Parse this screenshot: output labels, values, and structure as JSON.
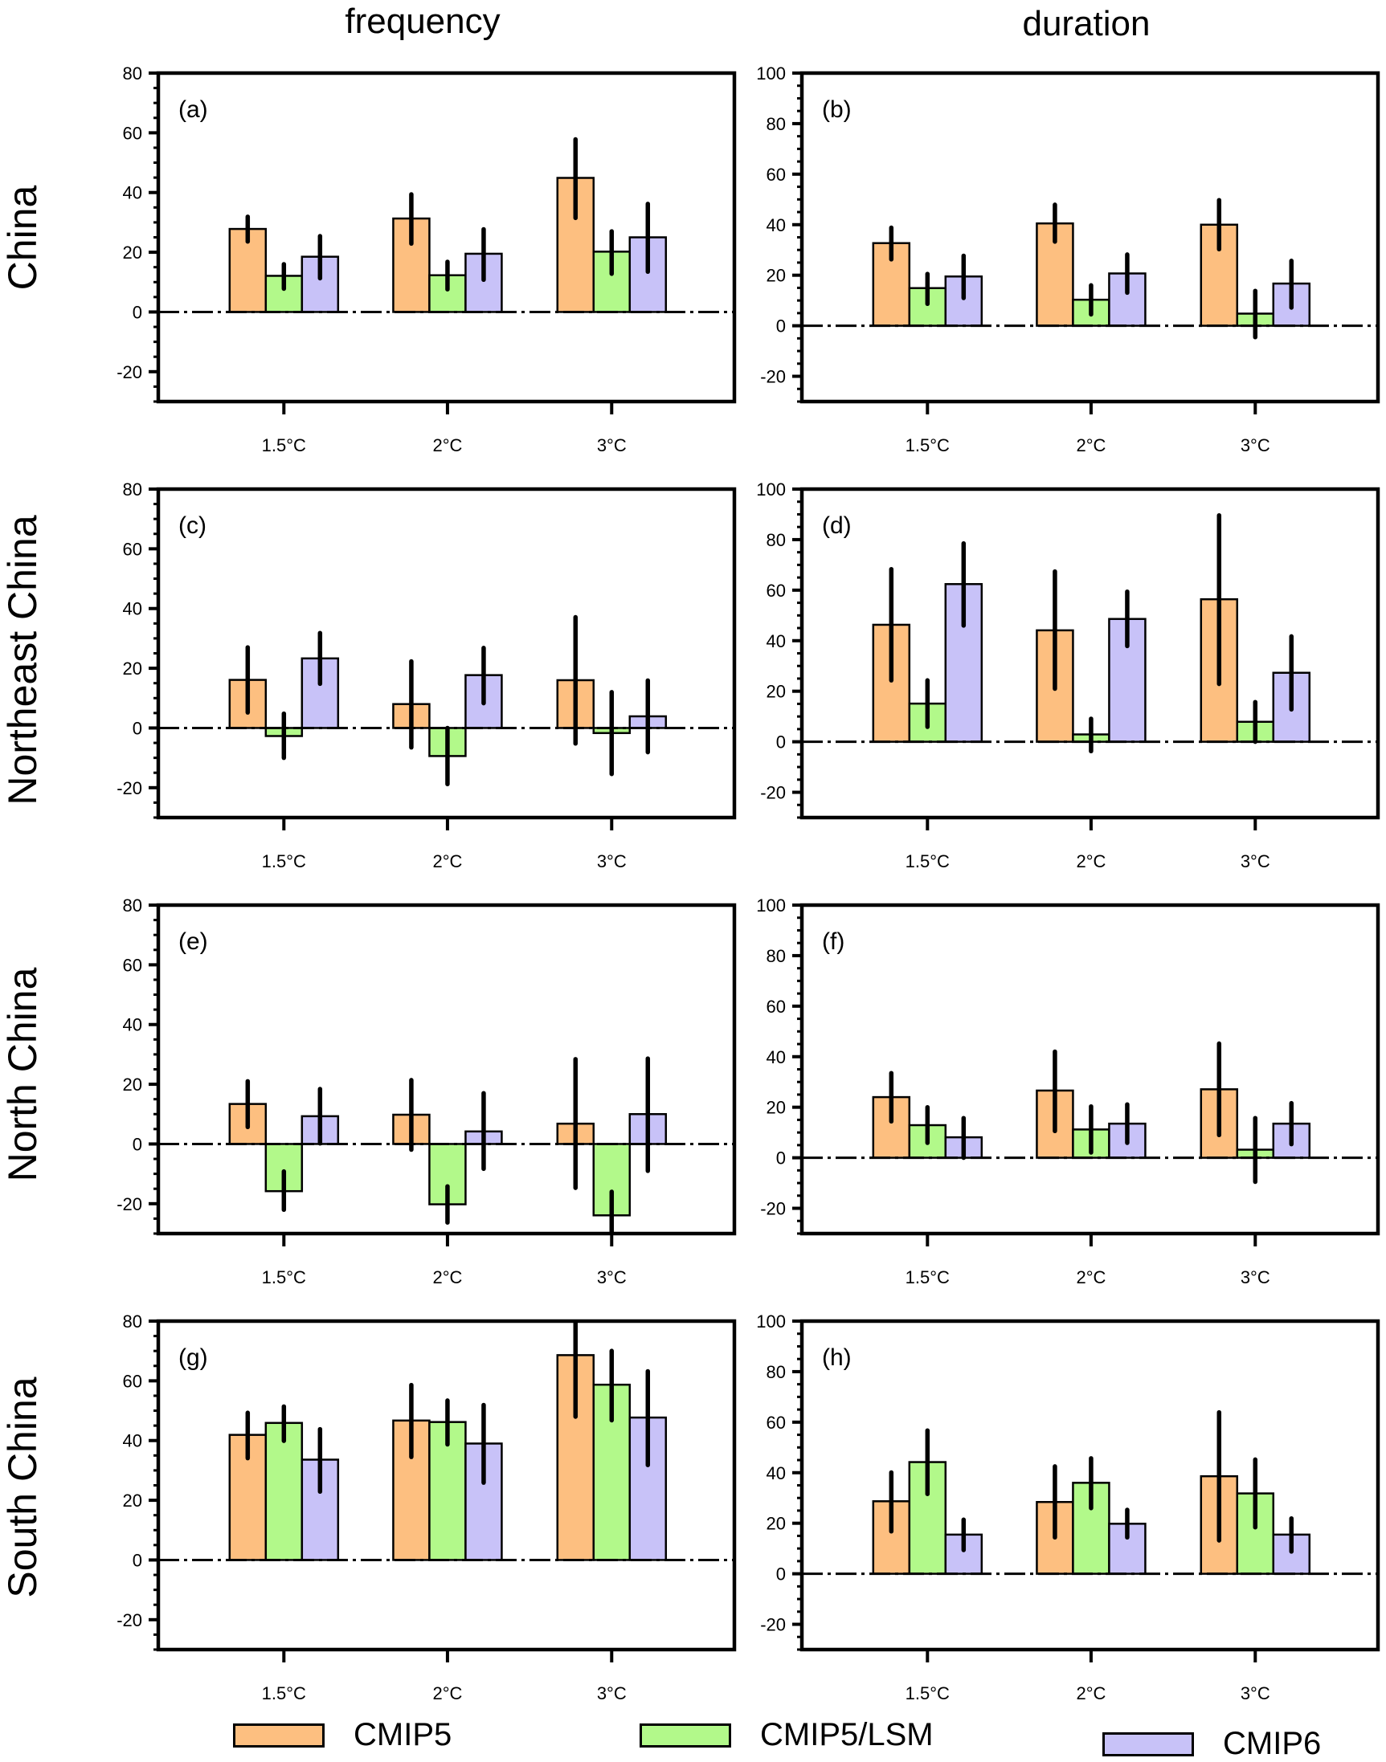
{
  "figure": {
    "column_titles": [
      "frequency",
      "duration"
    ],
    "row_labels": [
      "China",
      "Northeast China",
      "North China",
      "South China"
    ]
  },
  "legend": [
    {
      "label": "CMIP5",
      "color": "#FDBF80"
    },
    {
      "label": "CMIP5/LSM",
      "color": "#B2F98A"
    },
    {
      "label": "CMIP6",
      "color": "#C8C2F8"
    }
  ],
  "chart_data": [
    {
      "panel": "(a)",
      "type": "bar",
      "region": "China",
      "metric": "frequency",
      "categories": [
        "1.5°C",
        "2°C",
        "3°C"
      ],
      "ylim": [
        -30,
        80
      ],
      "yticks": [
        -20,
        0,
        20,
        40,
        60,
        80
      ],
      "series": [
        {
          "name": "CMIP5",
          "values": [
            27.8,
            31.3,
            44.9
          ],
          "err_high": [
            31.9,
            39.4,
            57.8
          ],
          "err_low": [
            23.6,
            22.9,
            31.5
          ]
        },
        {
          "name": "CMIP5/LSM",
          "values": [
            12.1,
            12.3,
            20.2
          ],
          "err_high": [
            16.0,
            16.8,
            27.0
          ],
          "err_low": [
            7.8,
            7.6,
            12.8
          ]
        },
        {
          "name": "CMIP6",
          "values": [
            18.5,
            19.5,
            25.0
          ],
          "err_high": [
            25.4,
            27.7,
            36.2
          ],
          "err_low": [
            11.3,
            10.8,
            13.5
          ]
        }
      ]
    },
    {
      "panel": "(b)",
      "type": "bar",
      "region": "China",
      "metric": "duration",
      "categories": [
        "1.5°C",
        "2°C",
        "3°C"
      ],
      "ylim": [
        -30,
        100
      ],
      "yticks": [
        -20,
        0,
        20,
        40,
        60,
        80,
        100
      ],
      "series": [
        {
          "name": "CMIP5",
          "values": [
            32.7,
            40.5,
            40.0
          ],
          "err_high": [
            38.8,
            47.9,
            49.7
          ],
          "err_low": [
            26.3,
            33.3,
            30.3
          ]
        },
        {
          "name": "CMIP5/LSM",
          "values": [
            14.9,
            10.3,
            4.8
          ],
          "err_high": [
            20.5,
            16.0,
            13.8
          ],
          "err_low": [
            8.7,
            4.5,
            -4.5
          ]
        },
        {
          "name": "CMIP6",
          "values": [
            19.5,
            20.7,
            16.7
          ],
          "err_high": [
            27.7,
            28.2,
            25.7
          ],
          "err_low": [
            11.0,
            13.1,
            7.2
          ]
        }
      ]
    },
    {
      "panel": "(c)",
      "type": "bar",
      "region": "Northeast China",
      "metric": "frequency",
      "categories": [
        "1.5°C",
        "2°C",
        "3°C"
      ],
      "ylim": [
        -30,
        80
      ],
      "yticks": [
        -20,
        0,
        20,
        40,
        60,
        80
      ],
      "series": [
        {
          "name": "CMIP5",
          "values": [
            16.1,
            8.0,
            16.0
          ],
          "err_high": [
            27.0,
            22.3,
            37.1
          ],
          "err_low": [
            5.2,
            -6.5,
            -5.2
          ]
        },
        {
          "name": "CMIP5/LSM",
          "values": [
            -2.7,
            -9.4,
            -1.7
          ],
          "err_high": [
            4.8,
            0.0,
            12.0
          ],
          "err_low": [
            -10.0,
            -18.8,
            -15.4
          ]
        },
        {
          "name": "CMIP6",
          "values": [
            23.3,
            17.7,
            3.9
          ],
          "err_high": [
            31.8,
            26.8,
            15.9
          ],
          "err_low": [
            14.8,
            8.3,
            -8.1
          ]
        }
      ]
    },
    {
      "panel": "(d)",
      "type": "bar",
      "region": "Northeast China",
      "metric": "duration",
      "categories": [
        "1.5°C",
        "2°C",
        "3°C"
      ],
      "ylim": [
        -30,
        100
      ],
      "yticks": [
        -20,
        0,
        20,
        40,
        60,
        80,
        100
      ],
      "series": [
        {
          "name": "CMIP5",
          "values": [
            46.3,
            44.1,
            56.4
          ],
          "err_high": [
            68.3,
            67.4,
            89.6
          ],
          "err_low": [
            24.3,
            21.0,
            22.9
          ]
        },
        {
          "name": "CMIP5/LSM",
          "values": [
            15.1,
            2.9,
            7.9
          ],
          "err_high": [
            24.3,
            9.1,
            15.7
          ],
          "err_low": [
            5.9,
            -3.7,
            0.0
          ]
        },
        {
          "name": "CMIP6",
          "values": [
            62.4,
            48.6,
            27.3
          ],
          "err_high": [
            78.5,
            59.4,
            41.7
          ],
          "err_low": [
            46.0,
            37.9,
            12.8
          ]
        }
      ]
    },
    {
      "panel": "(e)",
      "type": "bar",
      "region": "North China",
      "metric": "frequency",
      "categories": [
        "1.5°C",
        "2°C",
        "3°C"
      ],
      "ylim": [
        -30,
        80
      ],
      "yticks": [
        -20,
        0,
        20,
        40,
        60,
        80
      ],
      "series": [
        {
          "name": "CMIP5",
          "values": [
            13.4,
            9.8,
            6.8
          ],
          "err_high": [
            21.0,
            21.4,
            28.4
          ],
          "err_low": [
            5.7,
            -1.9,
            -14.7
          ]
        },
        {
          "name": "CMIP5/LSM",
          "values": [
            -15.8,
            -20.2,
            -23.9
          ],
          "err_high": [
            -9.2,
            -14.2,
            -16.0
          ],
          "err_low": [
            -22.0,
            -26.3,
            -30.0
          ]
        },
        {
          "name": "CMIP6",
          "values": [
            9.3,
            4.2,
            10.0
          ],
          "err_high": [
            18.4,
            17.0,
            28.6
          ],
          "err_low": [
            0.2,
            -8.3,
            -9.0
          ]
        }
      ]
    },
    {
      "panel": "(f)",
      "type": "bar",
      "region": "North China",
      "metric": "duration",
      "categories": [
        "1.5°C",
        "2°C",
        "3°C"
      ],
      "ylim": [
        -30,
        100
      ],
      "yticks": [
        -20,
        0,
        20,
        40,
        60,
        80,
        100
      ],
      "series": [
        {
          "name": "CMIP5",
          "values": [
            24.0,
            26.6,
            27.1
          ],
          "err_high": [
            33.5,
            42.0,
            45.2
          ],
          "err_low": [
            14.4,
            10.6,
            9.0
          ]
        },
        {
          "name": "CMIP5/LSM",
          "values": [
            12.9,
            11.2,
            3.2
          ],
          "err_high": [
            20.0,
            20.3,
            15.7
          ],
          "err_low": [
            5.9,
            2.1,
            -9.5
          ]
        },
        {
          "name": "CMIP6",
          "values": [
            8.1,
            13.5,
            13.5
          ],
          "err_high": [
            15.7,
            21.1,
            21.6
          ],
          "err_low": [
            0.0,
            5.9,
            5.4
          ]
        }
      ]
    },
    {
      "panel": "(g)",
      "type": "bar",
      "region": "South China",
      "metric": "frequency",
      "categories": [
        "1.5°C",
        "2°C",
        "3°C"
      ],
      "ylim": [
        -30,
        80
      ],
      "yticks": [
        -20,
        0,
        20,
        40,
        60,
        80
      ],
      "series": [
        {
          "name": "CMIP5",
          "values": [
            41.9,
            46.7,
            68.6
          ],
          "err_high": [
            49.3,
            58.6,
            80.0
          ],
          "err_low": [
            34.1,
            34.5,
            48.0
          ]
        },
        {
          "name": "CMIP5/LSM",
          "values": [
            45.9,
            46.2,
            58.7
          ],
          "err_high": [
            51.4,
            53.4,
            70.0
          ],
          "err_low": [
            39.9,
            38.7,
            46.8
          ]
        },
        {
          "name": "CMIP6",
          "values": [
            33.6,
            39.0,
            47.7
          ],
          "err_high": [
            43.8,
            51.9,
            63.2
          ],
          "err_low": [
            22.9,
            25.9,
            31.8
          ]
        }
      ]
    },
    {
      "panel": "(h)",
      "type": "bar",
      "region": "South China",
      "metric": "duration",
      "categories": [
        "1.5°C",
        "2°C",
        "3°C"
      ],
      "ylim": [
        -30,
        100
      ],
      "yticks": [
        -20,
        0,
        20,
        40,
        60,
        80,
        100
      ],
      "series": [
        {
          "name": "CMIP5",
          "values": [
            28.7,
            28.4,
            38.6
          ],
          "err_high": [
            40.1,
            42.5,
            63.9
          ],
          "err_low": [
            16.8,
            14.4,
            13.2
          ]
        },
        {
          "name": "CMIP5/LSM",
          "values": [
            44.2,
            36.0,
            31.8
          ],
          "err_high": [
            56.7,
            45.7,
            45.2
          ],
          "err_low": [
            31.6,
            26.0,
            18.4
          ]
        },
        {
          "name": "CMIP6",
          "values": [
            15.5,
            19.8,
            15.5
          ],
          "err_high": [
            21.4,
            25.3,
            21.9
          ],
          "err_low": [
            9.4,
            14.4,
            8.8
          ]
        }
      ]
    }
  ]
}
